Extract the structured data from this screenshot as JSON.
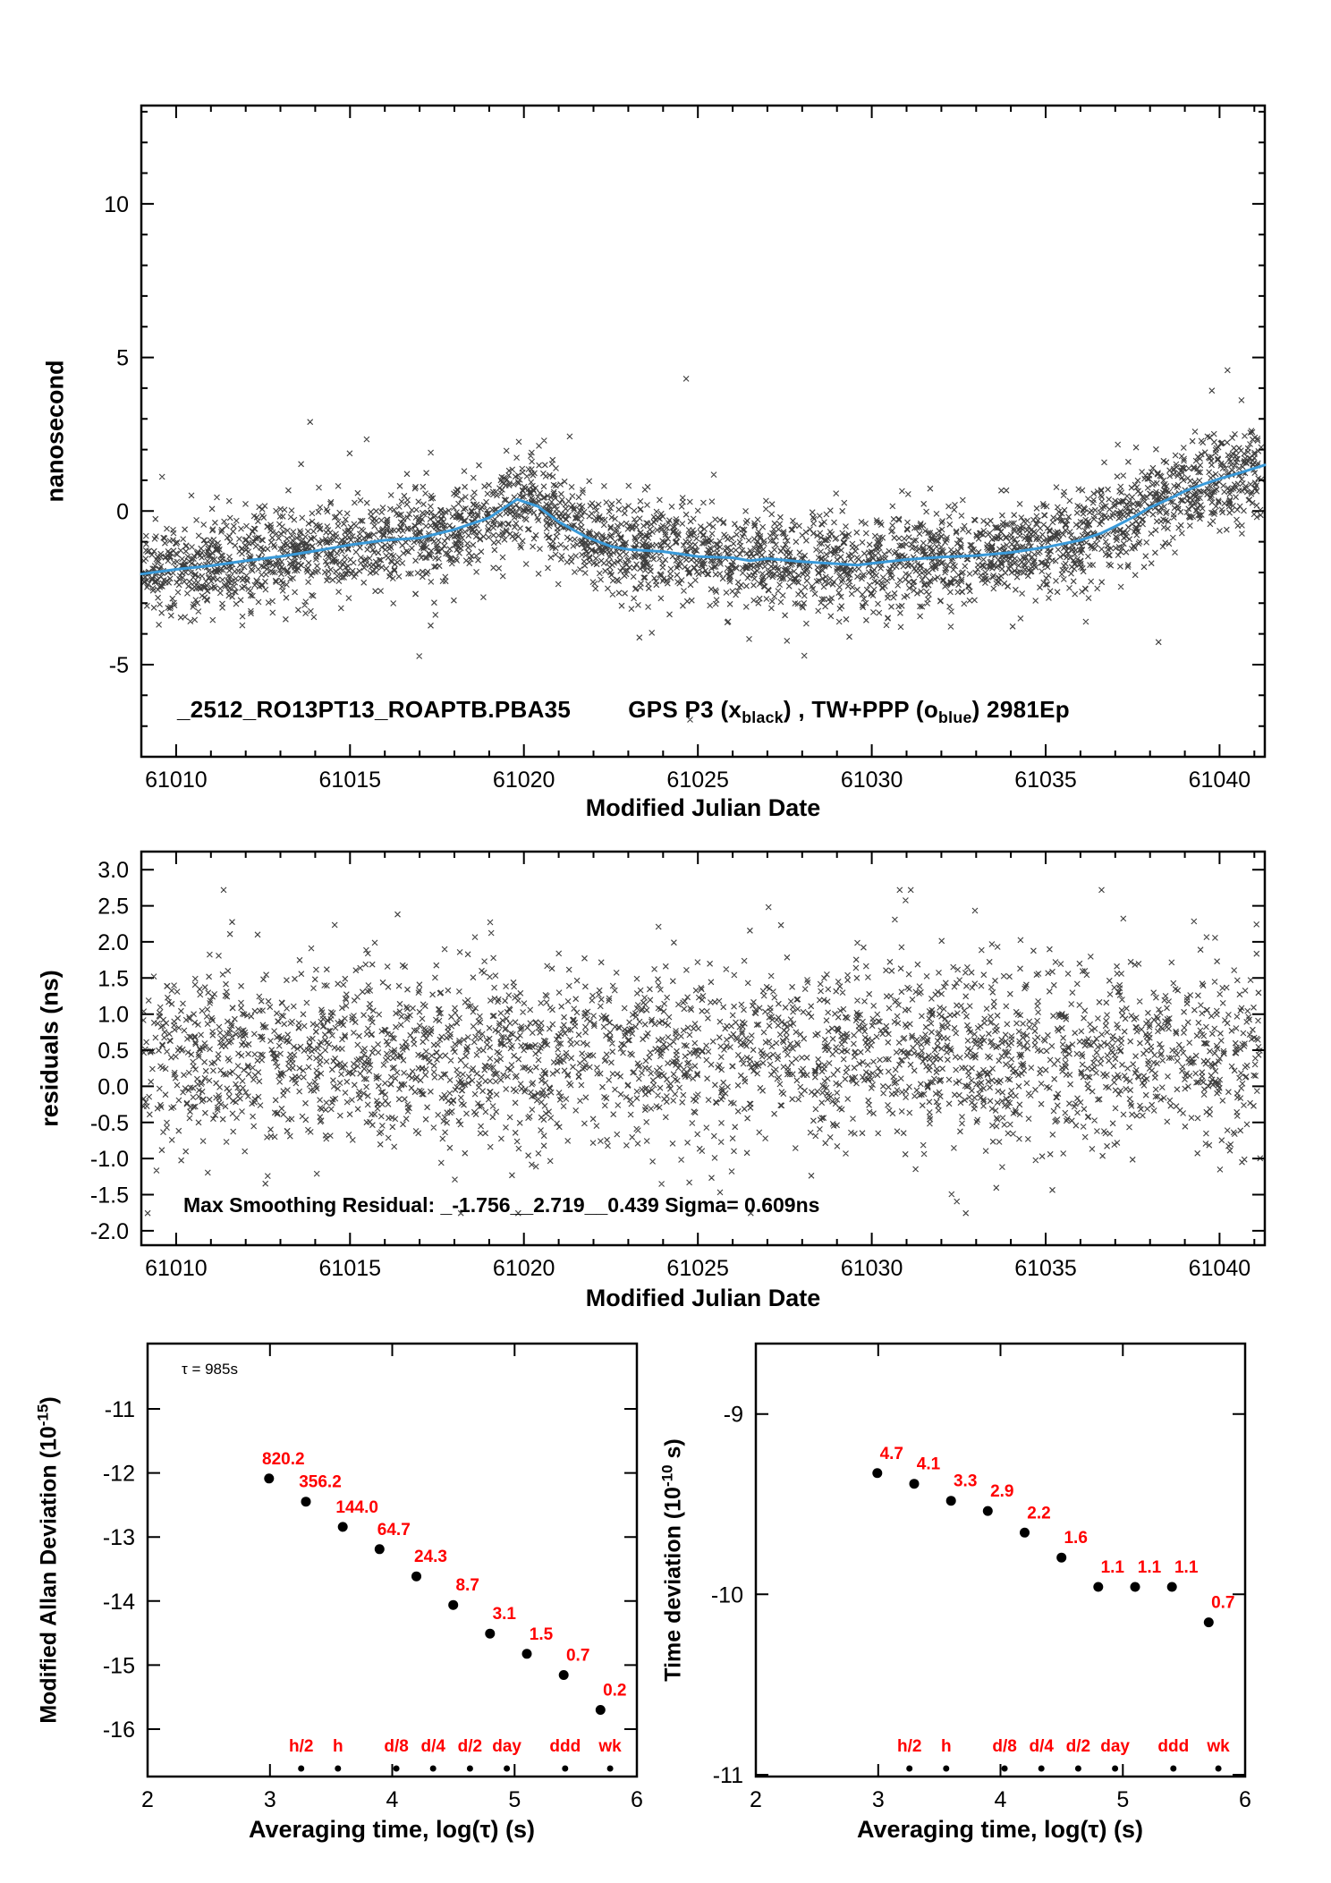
{
  "figure": {
    "background": "#ffffff",
    "axis_color": "#000000",
    "marker_color": "#1c1c1c",
    "trend_color": "#3a9ad9",
    "red_label_color": "#ff0000"
  },
  "chart_data": [
    {
      "kind": "scatter",
      "panel": "top",
      "type": "scatter",
      "xlabel": "Modified Julian Date",
      "ylabel": "nanosecond",
      "xlim": [
        61009,
        61041.3
      ],
      "ylim": [
        -8,
        13.2
      ],
      "xticks": [
        61010,
        61015,
        61020,
        61025,
        61030,
        61035,
        61040
      ],
      "yticks": [
        -5,
        0,
        5,
        10
      ],
      "x_minor_step": 1,
      "y_minor_step": 1,
      "annotation": {
        "a": "_2512_RO13PT13_ROAPTB.PBA35",
        "b": "GPS P3 (x",
        "b_sub": "black",
        "c": ") ,  TW+PPP (o",
        "c_sub": "blue",
        "d": ")  2981Ep"
      },
      "scatter": {
        "name": "GPS P3 points",
        "marker": "x",
        "n_points": 3400,
        "noise_sigma": 0.78,
        "seed": 101,
        "clip": [
          -7,
          12
        ]
      },
      "trend": {
        "name": "TW+PPP smoothed",
        "points": [
          [
            61009,
            -2.05
          ],
          [
            61010,
            -1.9
          ],
          [
            61011,
            -1.78
          ],
          [
            61012,
            -1.62
          ],
          [
            61013,
            -1.48
          ],
          [
            61014,
            -1.3
          ],
          [
            61015,
            -1.1
          ],
          [
            61016,
            -0.95
          ],
          [
            61017,
            -0.88
          ],
          [
            61018,
            -0.6
          ],
          [
            61019,
            -0.22
          ],
          [
            61019.8,
            0.38
          ],
          [
            61020.4,
            0.15
          ],
          [
            61021,
            -0.35
          ],
          [
            61021.8,
            -0.85
          ],
          [
            61022.5,
            -1.15
          ],
          [
            61023,
            -1.25
          ],
          [
            61024,
            -1.32
          ],
          [
            61025,
            -1.48
          ],
          [
            61026,
            -1.52
          ],
          [
            61026.5,
            -1.62
          ],
          [
            61027,
            -1.55
          ],
          [
            61028,
            -1.65
          ],
          [
            61029,
            -1.72
          ],
          [
            61029.6,
            -1.76
          ],
          [
            61030,
            -1.7
          ],
          [
            61031,
            -1.58
          ],
          [
            61032,
            -1.5
          ],
          [
            61033,
            -1.45
          ],
          [
            61034,
            -1.35
          ],
          [
            61035,
            -1.18
          ],
          [
            61036,
            -0.95
          ],
          [
            61036.6,
            -0.72
          ],
          [
            61037,
            -0.5
          ],
          [
            61037.6,
            -0.15
          ],
          [
            61038,
            0.12
          ],
          [
            61038.6,
            0.42
          ],
          [
            61039,
            0.65
          ],
          [
            61039.6,
            0.9
          ],
          [
            61040,
            1.05
          ],
          [
            61040.6,
            1.25
          ],
          [
            61041.3,
            1.5
          ]
        ]
      }
    },
    {
      "kind": "scatter",
      "panel": "mid",
      "type": "scatter",
      "xlabel": "Modified Julian Date",
      "ylabel": "residuals (ns)",
      "xlim": [
        61009,
        61041.3
      ],
      "ylim": [
        -2.2,
        3.25
      ],
      "xticks": [
        61010,
        61015,
        61020,
        61025,
        61030,
        61035,
        61040
      ],
      "yticks": [
        -2.0,
        -1.5,
        -1.0,
        -0.5,
        0.0,
        0.5,
        1.0,
        1.5,
        2.0,
        2.5,
        3.0
      ],
      "x_minor_step": 1,
      "ytick_format": "fixed1",
      "annotation_text": "Max Smoothing Residual: _-1.756__2.719__0.439  Sigma= 0.609ns",
      "scatter": {
        "name": "smoothing residuals",
        "marker": "x",
        "n_points": 2800,
        "mean": 0.44,
        "noise_sigma": 0.609,
        "seed": 202,
        "clip": [
          -1.756,
          2.719
        ]
      }
    },
    {
      "kind": "adev",
      "panel": "bl",
      "type": "scatter",
      "xlabel": "Averaging time, log(τ) (s)",
      "ylabel_parts": {
        "pre": "Modified Allan Deviation (10",
        "sup": "-15",
        "post": ")"
      },
      "xlim": [
        2,
        6
      ],
      "ylim": [
        -16.74,
        -9.98
      ],
      "xticks": [
        2,
        3,
        4,
        5,
        6
      ],
      "yticks": [
        -16,
        -15,
        -14,
        -13,
        -12,
        -11
      ],
      "tau_annotation": "τ = 985s",
      "value_exponent": -15,
      "points": {
        "logtau": [
          2.9934,
          3.2945,
          3.5955,
          3.8965,
          4.1975,
          4.4986,
          4.7996,
          5.1006,
          5.4016,
          5.7027
        ],
        "values": [
          820.2,
          356.2,
          144.0,
          64.7,
          24.3,
          8.7,
          3.1,
          1.5,
          0.7,
          0.2
        ],
        "labels": [
          "820.2",
          "356.2",
          "144.0",
          "64.7",
          "24.3",
          "8.7",
          "3.1",
          "1.5",
          "0.7",
          "0.2"
        ]
      },
      "time_markers": {
        "labels": [
          "h/2",
          "h",
          "d/8",
          "d/4",
          "d/2",
          "day",
          "ddd",
          "wk"
        ],
        "logtau": [
          3.2553,
          3.5563,
          4.0334,
          4.3345,
          4.6355,
          4.9365,
          5.4137,
          5.7816
        ]
      }
    },
    {
      "kind": "adev",
      "panel": "br",
      "type": "scatter",
      "xlabel": "Averaging time, log(τ) (s)",
      "ylabel_parts": {
        "pre": "Time deviation (10",
        "sup": "-10",
        "post": " s)"
      },
      "xlim": [
        2,
        6
      ],
      "ylim": [
        -11.01,
        -8.61
      ],
      "xticks": [
        2,
        3,
        4,
        5,
        6
      ],
      "yticks": [
        -11,
        -10,
        -9
      ],
      "value_exponent": -10,
      "points": {
        "logtau": [
          2.9934,
          3.2945,
          3.5955,
          3.8965,
          4.1975,
          4.4986,
          4.7996,
          5.1006,
          5.4016,
          5.7027
        ],
        "values": [
          4.7,
          4.1,
          3.3,
          2.9,
          2.2,
          1.6,
          1.1,
          1.1,
          1.1,
          0.7
        ],
        "labels": [
          "4.7",
          "4.1",
          "3.3",
          "2.9",
          "2.2",
          "1.6",
          "1.1",
          "1.1",
          "1.1",
          "0.7"
        ]
      },
      "time_markers": {
        "labels": [
          "h/2",
          "h",
          "d/8",
          "d/4",
          "d/2",
          "day",
          "ddd",
          "wk"
        ],
        "logtau": [
          3.2553,
          3.5563,
          4.0334,
          4.3345,
          4.6355,
          4.9365,
          5.4137,
          5.7816
        ]
      }
    }
  ]
}
